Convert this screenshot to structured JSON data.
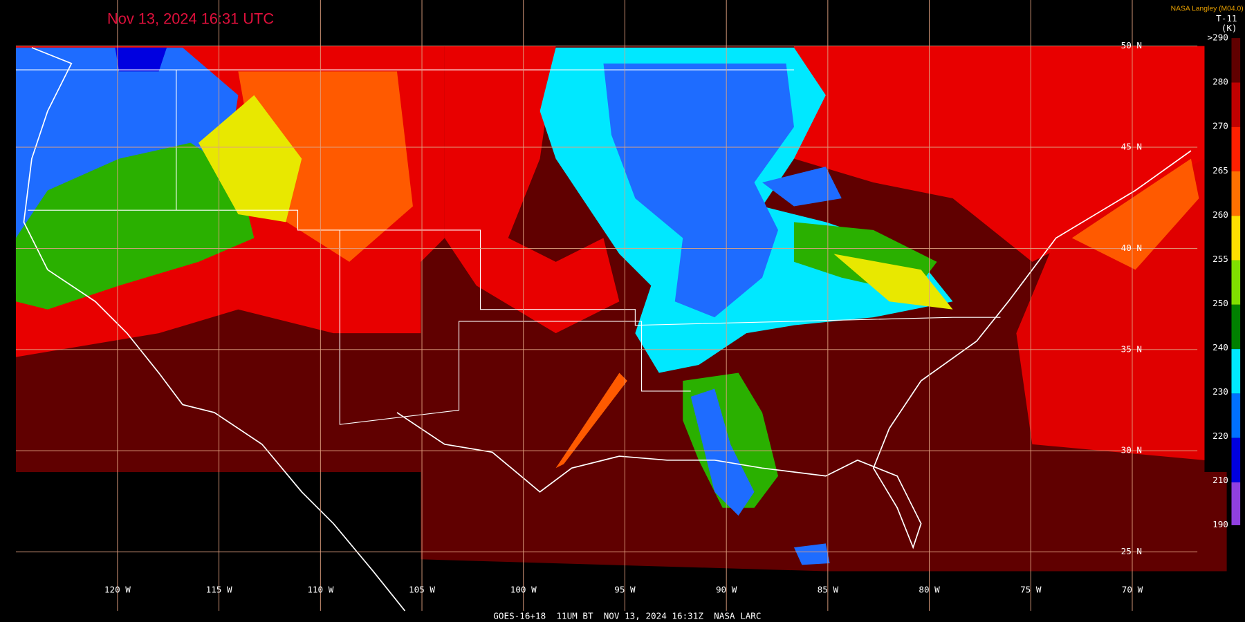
{
  "header": {
    "timestamp": "Nov 13, 2024 16:31 UTC",
    "credit": "NASA Langley (M04.0)"
  },
  "colorbar": {
    "title": "T-11",
    "unit": "(K)",
    "labels": [
      ">290",
      "280",
      "270",
      "265",
      "260",
      "255",
      "250",
      "240",
      "230",
      "220",
      "210",
      "190"
    ]
  },
  "grid": {
    "latitudes": [
      "50 N",
      "45 N",
      "40 N",
      "35 N",
      "30 N",
      "25 N"
    ],
    "longitudes": [
      "120 W",
      "115 W",
      "110 W",
      "105 W",
      "100 W",
      "95 W",
      "90 W",
      "85 W",
      "80 W",
      "75 W",
      "70 W"
    ]
  },
  "footer": "GOES-16+18  11UM BT  NOV 13, 2024 16:31Z  NASA LARC"
}
